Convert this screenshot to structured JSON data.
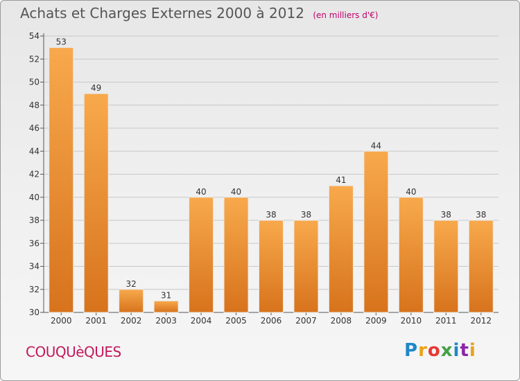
{
  "title": "Achats et Charges Externes 2000 à 2012",
  "unit": "(en milliers d'€)",
  "commune": "COUQUèQUES",
  "logo": {
    "text": "Proxiti",
    "colors": [
      "#1e88c8",
      "#e8a318",
      "#e53935",
      "#43a047",
      "#1e88c8",
      "#8e24aa",
      "#e8a318"
    ]
  },
  "colors": {
    "bar_top": "#f8a94c",
    "bar_bottom": "#d7731c",
    "grid": "#c8c8c8"
  },
  "chart_data": {
    "type": "bar",
    "title": "Achats et Charges Externes 2000 à 2012",
    "ylabel": "(en milliers d'€)",
    "categories": [
      "2000",
      "2001",
      "2002",
      "2003",
      "2004",
      "2005",
      "2006",
      "2007",
      "2008",
      "2009",
      "2010",
      "2011",
      "2012"
    ],
    "values": [
      53,
      49,
      32,
      31,
      40,
      40,
      38,
      38,
      41,
      44,
      40,
      38,
      38
    ],
    "ylim": [
      30,
      54
    ],
    "yticks": [
      30,
      32,
      34,
      36,
      38,
      40,
      42,
      44,
      46,
      48,
      50,
      52,
      54
    ],
    "grid": true,
    "data_labels": true
  }
}
